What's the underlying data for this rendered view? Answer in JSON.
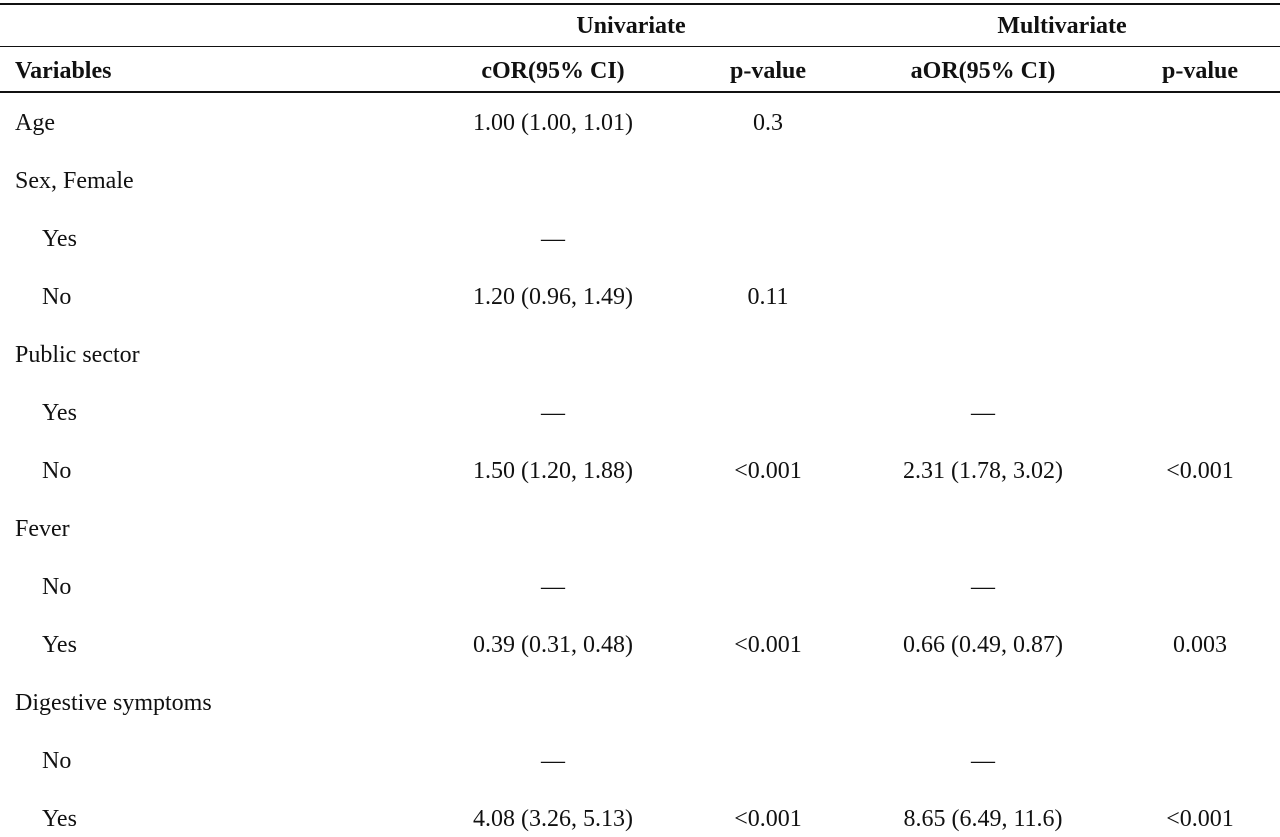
{
  "group_headers": {
    "univariate": "Univariate",
    "multivariate": "Multivariate"
  },
  "columns": {
    "variables": "Variables",
    "uni_or": "cOR(95% CI)",
    "uni_p": "p-value",
    "mul_or": "aOR(95% CI)",
    "mul_p": "p-value"
  },
  "rows": [
    {
      "label": "Age",
      "indent": false,
      "uni_or": "1.00 (1.00, 1.01)",
      "uni_p": "0.3",
      "mul_or": "",
      "mul_p": ""
    },
    {
      "label": "Sex, Female",
      "indent": false,
      "uni_or": "",
      "uni_p": "",
      "mul_or": "",
      "mul_p": ""
    },
    {
      "label": "Yes",
      "indent": true,
      "uni_or": "—",
      "uni_p": "",
      "mul_or": "",
      "mul_p": ""
    },
    {
      "label": "No",
      "indent": true,
      "uni_or": "1.20 (0.96, 1.49)",
      "uni_p": "0.11",
      "mul_or": "",
      "mul_p": ""
    },
    {
      "label": "Public sector",
      "indent": false,
      "uni_or": "",
      "uni_p": "",
      "mul_or": "",
      "mul_p": ""
    },
    {
      "label": "Yes",
      "indent": true,
      "uni_or": "—",
      "uni_p": "",
      "mul_or": "—",
      "mul_p": ""
    },
    {
      "label": "No",
      "indent": true,
      "uni_or": "1.50 (1.20, 1.88)",
      "uni_p": "<0.001",
      "mul_or": "2.31 (1.78, 3.02)",
      "mul_p": "<0.001"
    },
    {
      "label": "Fever",
      "indent": false,
      "uni_or": "",
      "uni_p": "",
      "mul_or": "",
      "mul_p": ""
    },
    {
      "label": "No",
      "indent": true,
      "uni_or": "—",
      "uni_p": "",
      "mul_or": "—",
      "mul_p": ""
    },
    {
      "label": "Yes",
      "indent": true,
      "uni_or": "0.39 (0.31, 0.48)",
      "uni_p": "<0.001",
      "mul_or": "0.66 (0.49, 0.87)",
      "mul_p": "0.003"
    },
    {
      "label": "Digestive symptoms",
      "indent": false,
      "uni_or": "",
      "uni_p": "",
      "mul_or": "",
      "mul_p": ""
    },
    {
      "label": "No",
      "indent": true,
      "uni_or": "—",
      "uni_p": "",
      "mul_or": "—",
      "mul_p": ""
    },
    {
      "label": "Yes",
      "indent": true,
      "uni_or": "4.08 (3.26, 5.13)",
      "uni_p": "<0.001",
      "mul_or": "8.65 (6.49, 11.6)",
      "mul_p": "<0.001"
    }
  ]
}
